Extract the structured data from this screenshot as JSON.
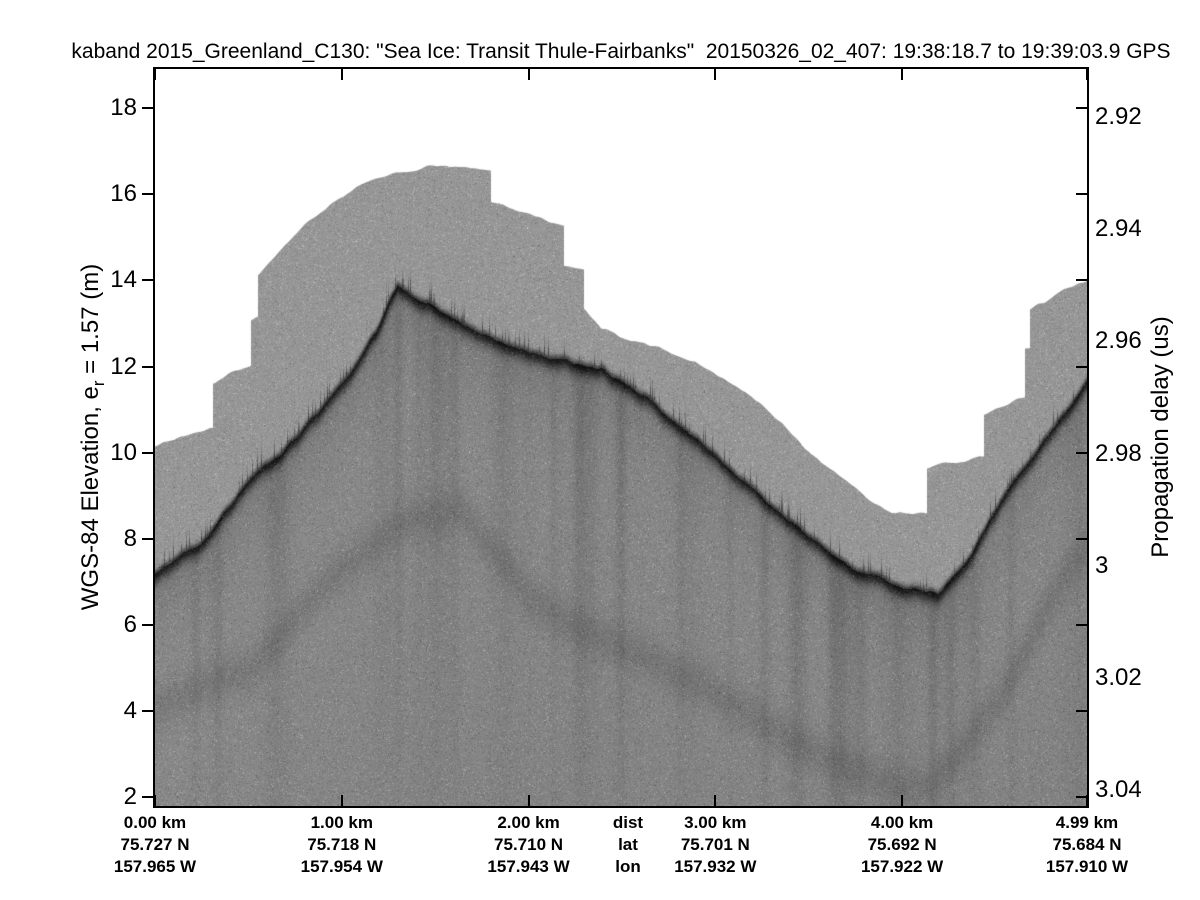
{
  "title": "kaband 2015_Greenland_C130: \"Sea Ice: Transit Thule-Fairbanks\"  20150326_02_407: 19:38:18.7 to 19:39:03.9 GPS",
  "chart_data": {
    "type": "heatmap",
    "description": "Ka-band radar altimeter echogram over sea ice; grayscale backscatter vs distance and elevation",
    "elevation_axis": {
      "label_pre": "WGS-84 Elevation, e",
      "label_sub": "r",
      "label_post": " = 1.57 (m)",
      "ticks": [
        18,
        16,
        14,
        12,
        10,
        8,
        6,
        4,
        2
      ],
      "range_m": [
        1.79,
        18.91
      ],
      "unit": "m"
    },
    "delay_axis": {
      "label": "Propagation delay (us)",
      "ticks": [
        2.92,
        2.94,
        2.96,
        2.98,
        3,
        3.02,
        3.04
      ],
      "range_us": [
        2.911,
        3.043
      ],
      "unit": "us"
    },
    "distance_axis": {
      "max_km": 4.99,
      "columns": [
        {
          "km": 0,
          "km_label": "0.00 km",
          "lat": "75.727 N",
          "lon": "157.965 W"
        },
        {
          "km": 1,
          "km_label": "1.00 km",
          "lat": "75.718 N",
          "lon": "157.954 W"
        },
        {
          "km": 2,
          "km_label": "2.00 km",
          "lat": "75.710 N",
          "lon": "157.943 W"
        },
        {
          "km": 3,
          "km_label": "3.00 km",
          "lat": "75.701 N",
          "lon": "157.932 W"
        },
        {
          "km": 4,
          "km_label": "4.00 km",
          "lat": "75.692 N",
          "lon": "157.922 W"
        },
        {
          "km": 4.99,
          "km_label": "4.99 km",
          "lat": "75.684 N",
          "lon": "157.910 W"
        }
      ],
      "legend": {
        "dist": "dist",
        "lat": "lat",
        "lon": "lon"
      }
    },
    "series": [
      {
        "name": "data_top_elevation_m",
        "x_km": [
          0,
          0.1,
          0.2,
          0.306,
          0.306,
          0.4,
          0.51,
          0.51,
          0.547,
          0.547,
          0.67,
          0.8,
          0.94,
          1.1,
          1.3,
          1.45,
          1.6,
          1.72,
          1.797,
          1.797,
          1.95,
          2.189,
          2.189,
          2.296,
          2.296,
          2.39,
          2.5,
          2.656,
          2.924,
          3.192,
          3.46,
          3.729,
          3.94,
          4.131,
          4.131,
          4.437,
          4.437,
          4.657,
          4.657,
          4.684,
          4.684,
          4.85,
          4.99
        ],
        "elev_m": [
          10.15,
          10.28,
          10.45,
          10.6,
          11.62,
          11.85,
          12.05,
          13.1,
          13.2,
          14.15,
          14.75,
          15.3,
          15.8,
          16.25,
          16.5,
          16.65,
          16.68,
          16.62,
          16.58,
          15.85,
          15.6,
          15.28,
          14.35,
          14.25,
          13.35,
          12.9,
          12.72,
          12.5,
          12.08,
          11.3,
          10.22,
          9.2,
          8.62,
          8.6,
          9.64,
          9.95,
          10.92,
          11.3,
          12.43,
          12.45,
          13.35,
          13.75,
          14.05
        ]
      },
      {
        "name": "surface_echo_elevation_m",
        "x_km": [
          0,
          0.24,
          0.51,
          0.78,
          1.05,
          1.18,
          1.298,
          1.42,
          1.58,
          1.85,
          2.12,
          2.39,
          2.66,
          2.92,
          3.19,
          3.46,
          3.73,
          4.0,
          4.19,
          4.37,
          4.53,
          4.72,
          4.86,
          4.99
        ],
        "elev_m": [
          7.2,
          7.9,
          9.35,
          10.5,
          11.95,
          12.85,
          13.95,
          13.55,
          13.2,
          12.6,
          12.2,
          12.0,
          11.2,
          10.25,
          9.25,
          8.2,
          7.35,
          6.85,
          6.7,
          7.6,
          8.9,
          10.0,
          10.9,
          11.75
        ]
      },
      {
        "name": "subsurface_echo_elevation_m",
        "x_km": [
          0,
          0.51,
          0.89,
          1.31,
          1.64,
          2.01,
          2.46,
          2.92,
          3.46,
          3.73,
          4.0,
          4.16,
          4.53,
          4.89,
          4.99
        ],
        "elev_m": [
          4.0,
          5.0,
          6.9,
          8.4,
          8.6,
          6.6,
          5.5,
          4.6,
          3.2,
          2.6,
          2.3,
          2.2,
          4.4,
          7.3,
          7.8
        ]
      }
    ],
    "colors": {
      "background": "#ffffff",
      "axis": "#000000",
      "text": "#000000",
      "data_gray": "#969696",
      "echo_dark": "#3c3c3c"
    },
    "legend_position": "none",
    "grid": false
  }
}
